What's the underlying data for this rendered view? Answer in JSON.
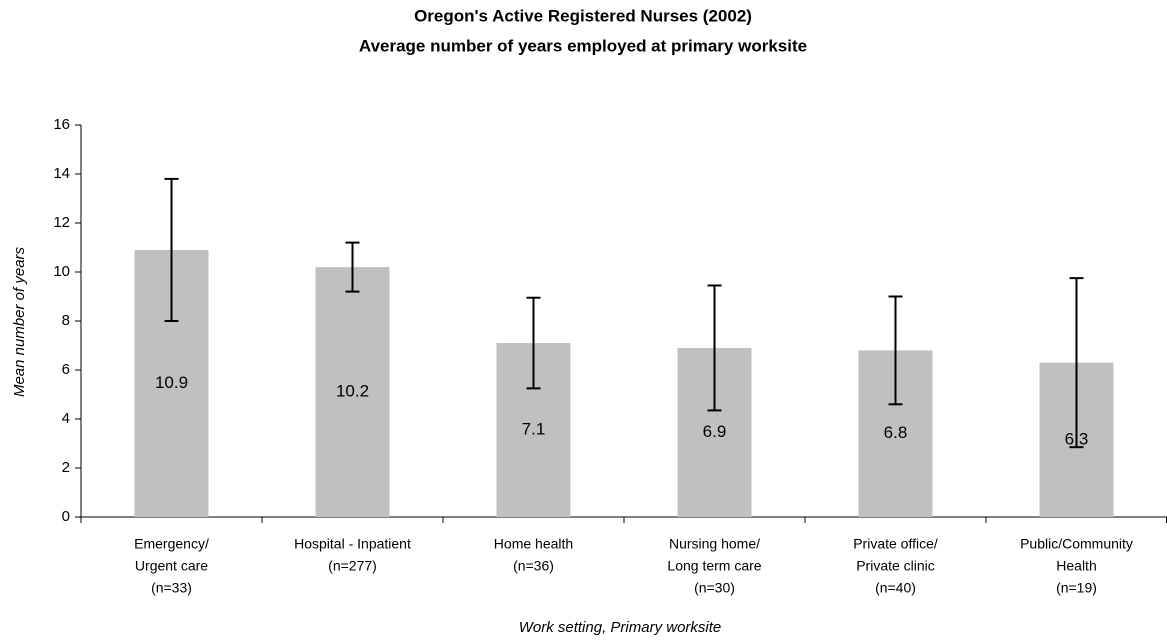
{
  "chart_data": {
    "type": "bar",
    "title": "Oregon's Active Registered Nurses (2002)",
    "subtitle": "Average number of years employed at primary worksite",
    "x_label": "Work setting, Primary worksite",
    "y_label": "Mean number of years",
    "categories": [
      [
        "Emergency/",
        "Urgent care",
        "(n=33)"
      ],
      [
        "Hospital - Inpatient",
        "(n=277)"
      ],
      [
        "Home health",
        "(n=36)"
      ],
      [
        "Nursing home/",
        "Long term care",
        "(n=30)"
      ],
      [
        "Private office/",
        "Private clinic",
        "(n=40)"
      ],
      [
        "Public/Community",
        "Health",
        "(n=19)"
      ]
    ],
    "values": [
      10.9,
      10.2,
      7.1,
      6.9,
      6.8,
      6.3
    ],
    "errors": [
      2.9,
      1.0,
      1.85,
      2.55,
      2.2,
      3.45
    ],
    "color": "#c0c0c0",
    "ylim": [
      0,
      16
    ],
    "yticks": [
      0,
      2,
      4,
      6,
      8,
      10,
      12,
      14,
      16
    ]
  }
}
